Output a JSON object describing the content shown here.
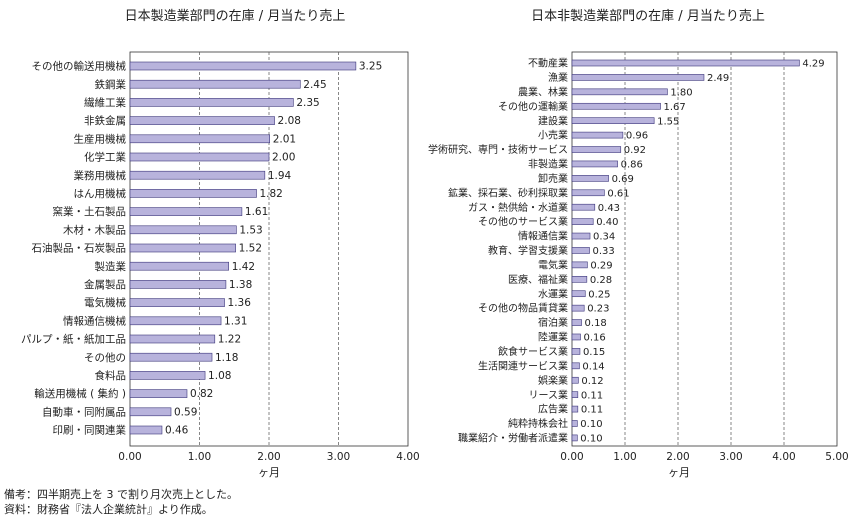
{
  "notes": {
    "line1": "備考：四半期売上を 3 で割り月次売上とした。",
    "line2": "資料：財務省『法人企業統計』より作成。"
  },
  "colors": {
    "bar": "#b8b3dc",
    "bar_stroke": "#3b357a",
    "axis": "#333333",
    "grid": "#555555"
  },
  "chart_data": [
    {
      "type": "bar",
      "orientation": "horizontal",
      "title": "日本製造業部門の在庫 / 月当たり売上",
      "xlabel": "ヶ月",
      "xlim": [
        0,
        4
      ],
      "xticks": [
        "0.00",
        "1.00",
        "2.00",
        "3.00",
        "4.00"
      ],
      "grid": "vertical-dashed",
      "categories": [
        "その他の輸送用機械",
        "鉄鋼業",
        "繊維工業",
        "非鉄金属",
        "生産用機械",
        "化学工業",
        "業務用機械",
        "はん用機械",
        "窯業・土石製品",
        "木材・木製品",
        "石油製品・石炭製品",
        "製造業",
        "金属製品",
        "電気機械",
        "情報通信機械",
        "パルプ・紙・紙加工品",
        "その他の",
        "食料品",
        "輸送用機械 ( 集約 )",
        "自動車・同附属品",
        "印刷・同関連業"
      ],
      "values": [
        3.25,
        2.45,
        2.35,
        2.08,
        2.01,
        2.0,
        1.94,
        1.82,
        1.61,
        1.53,
        1.52,
        1.42,
        1.38,
        1.36,
        1.31,
        1.22,
        1.18,
        1.08,
        0.82,
        0.59,
        0.46
      ],
      "labels": [
        "3.25",
        "2.45",
        "2.35",
        "2.08",
        "2.01",
        "2.00",
        "1.94",
        "1.82",
        "1.61",
        "1.53",
        "1.52",
        "1.42",
        "1.38",
        "1.36",
        "1.31",
        "1.22",
        "1.18",
        "1.08",
        "0.82",
        "0.59",
        "0.46"
      ]
    },
    {
      "type": "bar",
      "orientation": "horizontal",
      "title": "日本非製造業部門の在庫 / 月当たり売上",
      "xlabel": "ヶ月",
      "xlim": [
        0,
        5
      ],
      "xticks": [
        "0.00",
        "1.00",
        "2.00",
        "3.00",
        "4.00",
        "5.00"
      ],
      "grid": "vertical-dashed",
      "categories": [
        "不動産業",
        "漁業",
        "農業、林業",
        "その他の運輸業",
        "建設業",
        "小売業",
        "学術研究、専門・技術サービス",
        "非製造業",
        "卸売業",
        "鉱業、採石業、砂利採取業",
        "ガス・熱供給・水道業",
        "その他のサービス業",
        "情報通信業",
        "教育、学習支援業",
        "電気業",
        "医療、福祉業",
        "水運業",
        "その他の物品賃貸業",
        "宿泊業",
        "陸運業",
        "飲食サービス業",
        "生活関連サービス業",
        "娯楽業",
        "リース業",
        "広告業",
        "純粋持株会社",
        "職業紹介・労働者派遣業"
      ],
      "values": [
        4.29,
        2.49,
        1.8,
        1.67,
        1.55,
        0.96,
        0.92,
        0.86,
        0.69,
        0.61,
        0.43,
        0.4,
        0.34,
        0.33,
        0.29,
        0.28,
        0.25,
        0.23,
        0.18,
        0.16,
        0.15,
        0.14,
        0.12,
        0.11,
        0.11,
        0.1,
        0.1
      ],
      "labels": [
        "4.29",
        "2.49",
        "1.80",
        "1.67",
        "1.55",
        "0.96",
        "0.92",
        "0.86",
        "0.69",
        "0.61",
        "0.43",
        "0.40",
        "0.34",
        "0.33",
        "0.29",
        "0.28",
        "0.25",
        "0.23",
        "0.18",
        "0.16",
        "0.15",
        "0.14",
        "0.12",
        "0.11",
        "0.11",
        "0.10",
        "0.10"
      ]
    }
  ]
}
